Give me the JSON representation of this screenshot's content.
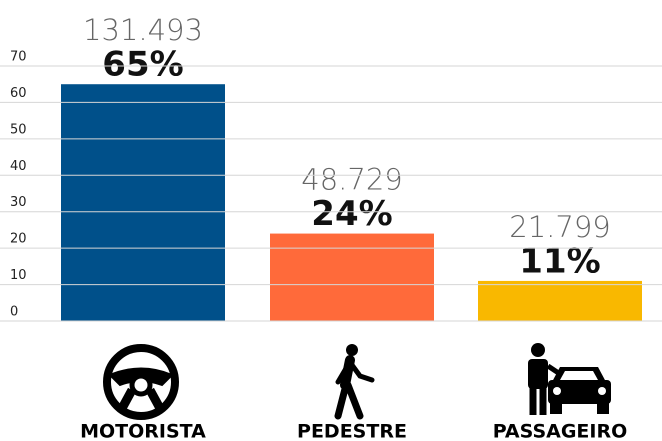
{
  "chart_data": {
    "type": "bar",
    "categories": [
      "MOTORISTA",
      "PEDESTRE",
      "PASSAGEIRO"
    ],
    "values": [
      65,
      24,
      11
    ],
    "value_labels": [
      "65%",
      "24%",
      "11%"
    ],
    "totals": [
      "131.493",
      "48.729",
      "21.799"
    ],
    "colors": [
      "#00508a",
      "#ff6a3a",
      "#f9b800"
    ],
    "ylim": [
      0,
      70
    ],
    "yticks": [
      0,
      10,
      20,
      30,
      40,
      50,
      60,
      70
    ],
    "grid": true
  }
}
